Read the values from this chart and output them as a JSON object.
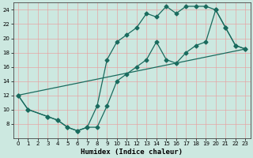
{
  "xlabel": "Humidex (Indice chaleur)",
  "xlim": [
    -0.5,
    23.5
  ],
  "ylim": [
    6,
    25
  ],
  "xticks": [
    0,
    1,
    2,
    3,
    4,
    5,
    6,
    7,
    8,
    9,
    10,
    11,
    12,
    13,
    14,
    15,
    16,
    17,
    18,
    19,
    20,
    21,
    22,
    23
  ],
  "yticks": [
    8,
    10,
    12,
    14,
    16,
    18,
    20,
    22,
    24
  ],
  "bg_color": "#cce8e0",
  "line_color": "#1a6b5e",
  "grid_color": "#e8a0a0",
  "line1_x": [
    0,
    1,
    3,
    4,
    5,
    6,
    7,
    8,
    9,
    10,
    11,
    12,
    13,
    14,
    15,
    16,
    17,
    18,
    19,
    20,
    21,
    22,
    23
  ],
  "line1_y": [
    12,
    10,
    9,
    8.5,
    7.5,
    7,
    7.5,
    10.5,
    17,
    19.5,
    20.5,
    21.5,
    23.5,
    23,
    24.5,
    23.5,
    24.5,
    24.5,
    24.5,
    24,
    21.5,
    19,
    18.5
  ],
  "line2_x": [
    0,
    1,
    3,
    4,
    5,
    6,
    7,
    8,
    9,
    10,
    11,
    12,
    13,
    14,
    15,
    16,
    17,
    18,
    19,
    20,
    21,
    22,
    23
  ],
  "line2_y": [
    12,
    10,
    9,
    8.5,
    7.5,
    7,
    7.5,
    7.5,
    10.5,
    14,
    15,
    16,
    17,
    19.5,
    17,
    16.5,
    18,
    19,
    19.5,
    24,
    21.5,
    19,
    18.5
  ],
  "line3_x": [
    0,
    23
  ],
  "line3_y": [
    12,
    18.5
  ],
  "marker": "D",
  "marker_size": 2.5,
  "linewidth": 0.9
}
